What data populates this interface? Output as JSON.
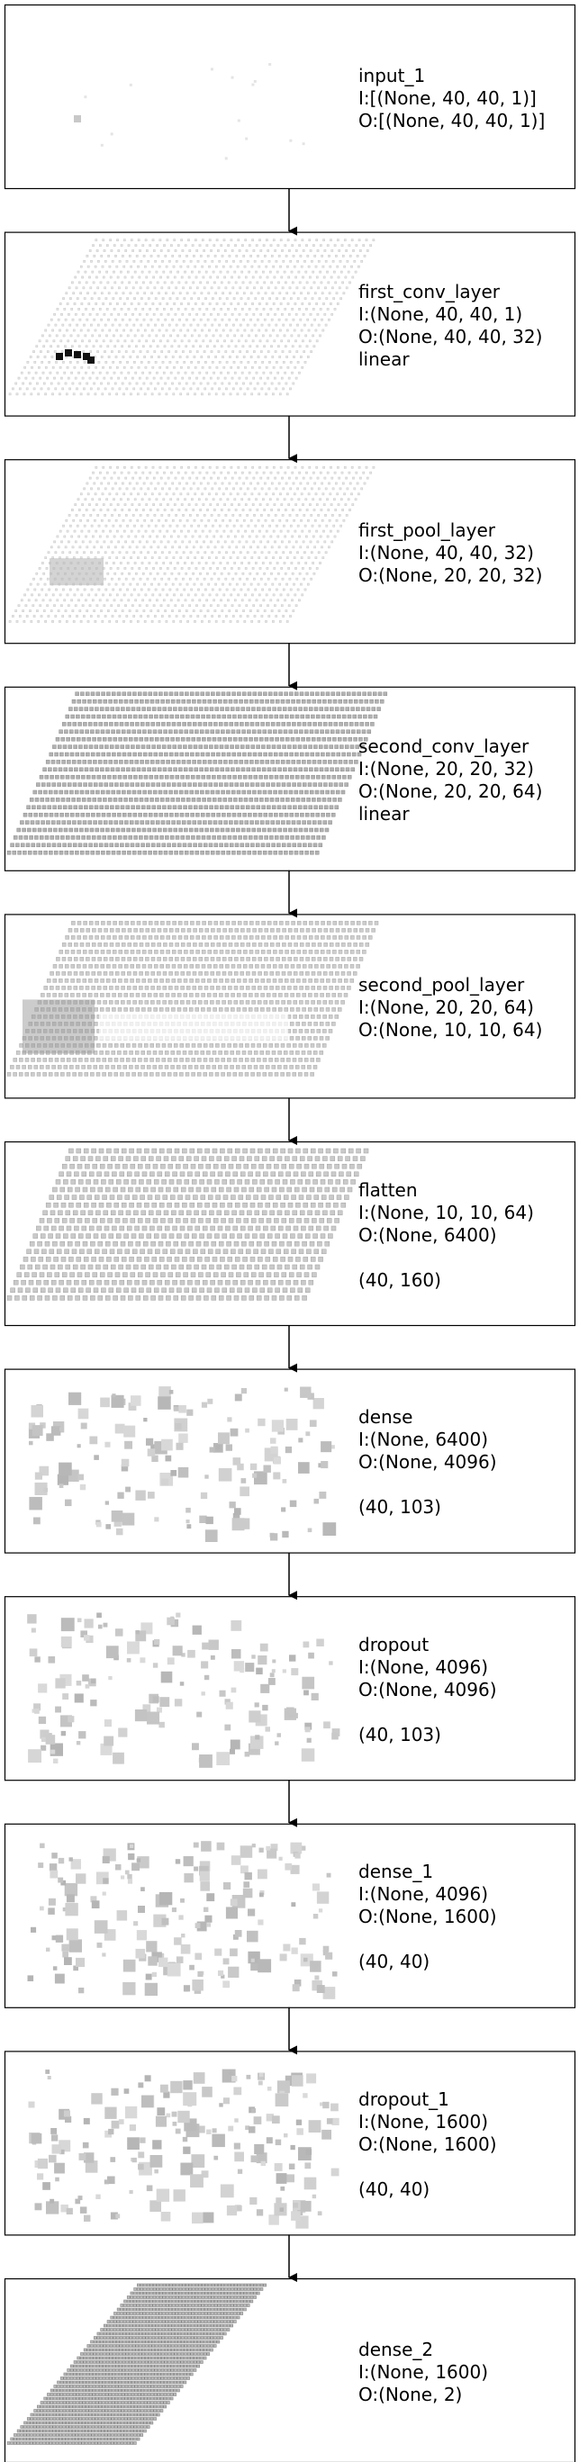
{
  "layers": [
    {
      "name": "input_1",
      "input_shape": "I:[(None, 40, 40, 1)]",
      "output_shape": "O:[(None, 40, 40, 1)]",
      "activation": "",
      "grid": ""
    },
    {
      "name": "first_conv_layer",
      "input_shape": "I:(None, 40, 40, 1)",
      "output_shape": "O:(None, 40, 40, 32)",
      "activation": "linear",
      "grid": ""
    },
    {
      "name": "first_pool_layer",
      "input_shape": "I:(None, 40, 40, 32)",
      "output_shape": "O:(None, 20, 20, 32)",
      "activation": "",
      "grid": ""
    },
    {
      "name": "second_conv_layer",
      "input_shape": "I:(None, 20, 20, 32)",
      "output_shape": "O:(None, 20, 20, 64)",
      "activation": "linear",
      "grid": ""
    },
    {
      "name": "second_pool_layer",
      "input_shape": "I:(None, 20, 20, 64)",
      "output_shape": "O:(None, 10, 10, 64)",
      "activation": "",
      "grid": ""
    },
    {
      "name": "flatten",
      "input_shape": "I:(None, 10, 10, 64)",
      "output_shape": "O:(None, 6400)",
      "activation": "",
      "grid": "(40, 160)"
    },
    {
      "name": "dense",
      "input_shape": "I:(None, 6400)",
      "output_shape": "O:(None, 4096)",
      "activation": "",
      "grid": "(40, 103)"
    },
    {
      "name": "dropout",
      "input_shape": "I:(None, 4096)",
      "output_shape": "O:(None, 4096)",
      "activation": "",
      "grid": "(40, 103)"
    },
    {
      "name": "dense_1",
      "input_shape": "I:(None, 4096)",
      "output_shape": "O:(None, 1600)",
      "activation": "",
      "grid": "(40, 40)"
    },
    {
      "name": "dropout_1",
      "input_shape": "I:(None, 1600)",
      "output_shape": "O:(None, 1600)",
      "activation": "",
      "grid": "(40, 40)"
    },
    {
      "name": "dense_2",
      "input_shape": "I:(None, 1600)",
      "output_shape": "O:(None, 2)",
      "activation": "",
      "grid": ""
    }
  ],
  "colors": {
    "border": "#000000",
    "arrow": "#000000",
    "grid_line": "#c8c8c8",
    "grid_fill": "#a8a8a8",
    "dark_patch": "#111111"
  }
}
